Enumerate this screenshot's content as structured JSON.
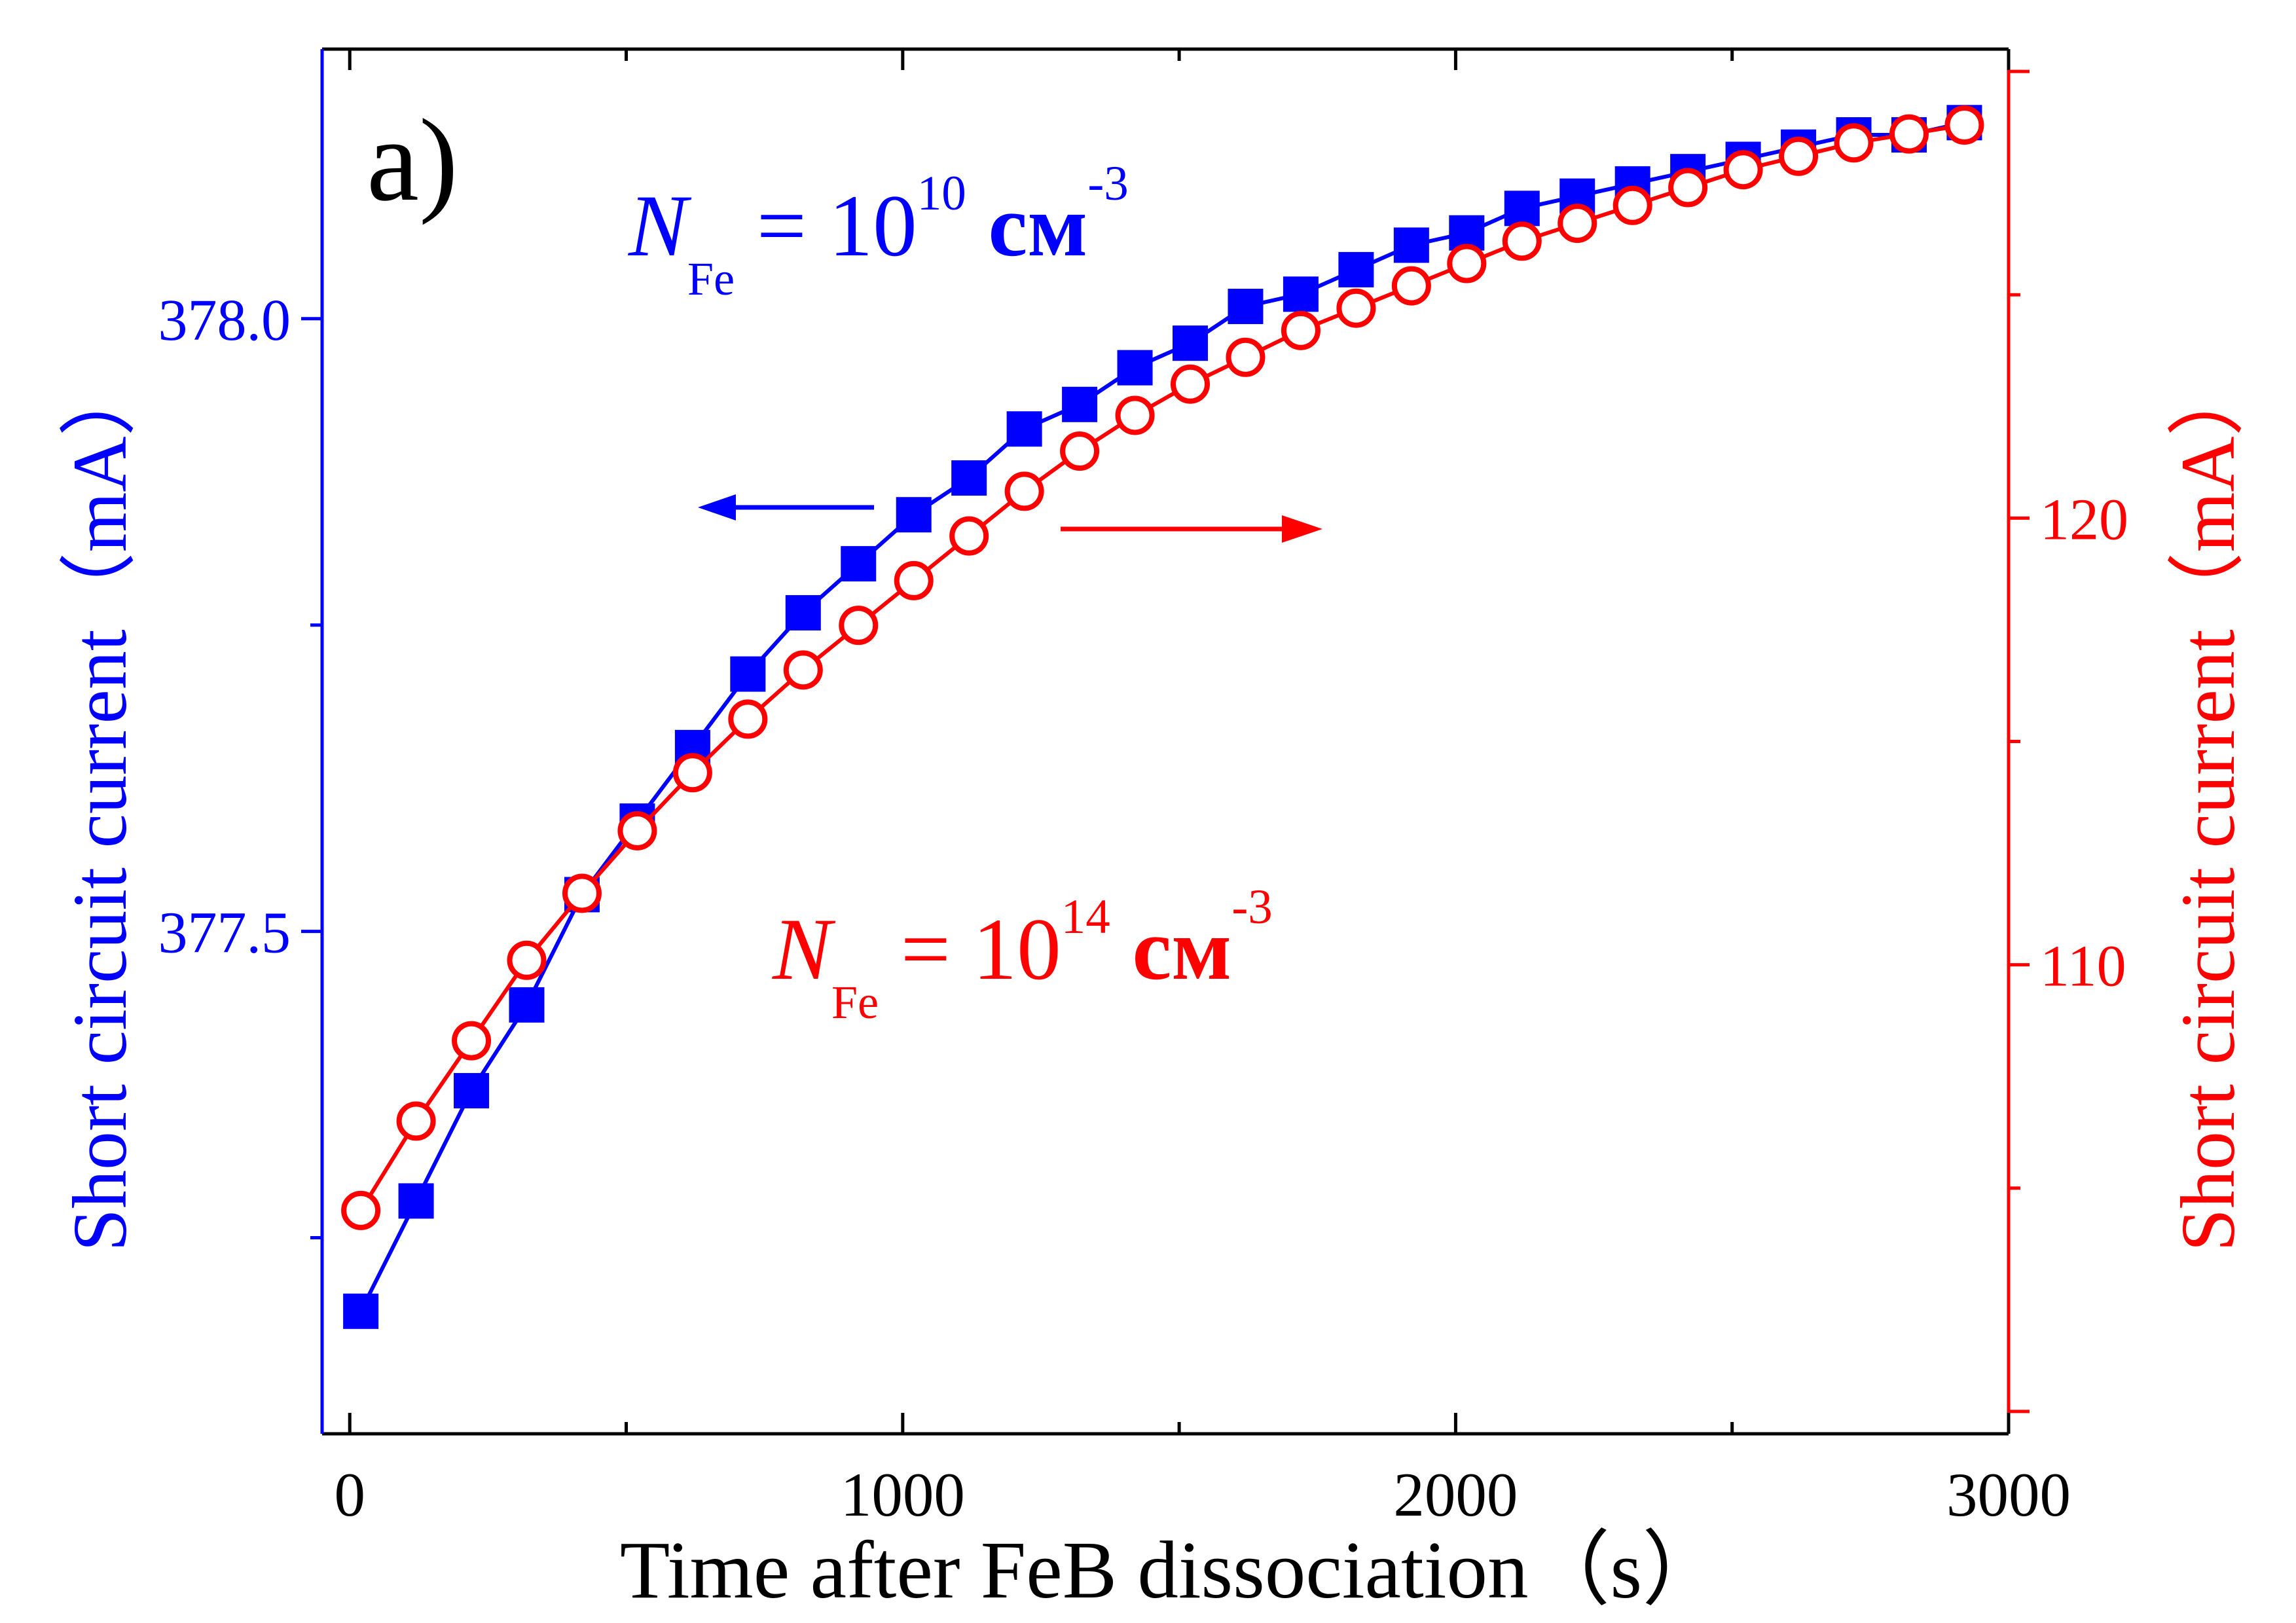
{
  "panel_label": "a)",
  "colors": {
    "left": "#0000ff",
    "right": "#ff0000",
    "frame": "#000000"
  },
  "annotations": {
    "blue": {
      "n": "N",
      "sub": "Fe",
      "eq": " = 10",
      "sup": "10",
      "unit": " см",
      "sup2": "-3"
    },
    "red": {
      "n": "N",
      "sub": "Fe",
      "eq": " = 10",
      "sup": "14",
      "unit": " см",
      "sup2": "-3"
    }
  },
  "chart_data": {
    "type": "line",
    "xlabel": "Time after FeB dissociation（s）",
    "ylabel_left": "Short circuit current（mA）",
    "ylabel_right": "Short circuit current（mA）",
    "xlim": [
      -50,
      3000
    ],
    "ylim_left": [
      377.09,
      378.22
    ],
    "ylim_right": [
      99.5,
      130.5
    ],
    "x_ticks": [
      0,
      1000,
      2000,
      3000
    ],
    "x_tick_labels": [
      "0",
      "1000",
      "2000",
      "3000"
    ],
    "y_left_ticks": [
      377.5,
      378.0
    ],
    "y_left_tick_labels": [
      "377.5",
      "378.0"
    ],
    "y_right_ticks": [
      110,
      120
    ],
    "y_right_tick_labels": [
      "110",
      "120"
    ],
    "grid": false,
    "x": [
      20,
      120,
      220,
      320,
      420,
      520,
      620,
      720,
      820,
      920,
      1020,
      1120,
      1220,
      1320,
      1420,
      1520,
      1620,
      1720,
      1820,
      1920,
      2020,
      2120,
      2220,
      2320,
      2420,
      2520,
      2620,
      2720,
      2820,
      2920
    ],
    "series": [
      {
        "name": "N_Fe = 10^10 см^-3",
        "axis": "left",
        "marker": "filled-square",
        "values": [
          377.19,
          377.28,
          377.37,
          377.44,
          377.53,
          377.59,
          377.65,
          377.71,
          377.76,
          377.8,
          377.84,
          377.87,
          377.91,
          377.93,
          377.96,
          377.98,
          378.01,
          378.02,
          378.04,
          378.06,
          378.07,
          378.09,
          378.1,
          378.11,
          378.12,
          378.13,
          378.14,
          378.15,
          378.15,
          378.16
        ]
      },
      {
        "name": "N_Fe = 10^14 см^-3",
        "axis": "right",
        "marker": "open-circle",
        "values": [
          104.5,
          106.5,
          108.3,
          110.1,
          111.6,
          113.0,
          114.3,
          115.5,
          116.6,
          117.6,
          118.6,
          119.6,
          120.6,
          121.5,
          122.3,
          123.0,
          123.6,
          124.2,
          124.7,
          125.2,
          125.7,
          126.2,
          126.6,
          127.0,
          127.4,
          127.8,
          128.1,
          128.4,
          128.6,
          128.8
        ]
      }
    ]
  }
}
